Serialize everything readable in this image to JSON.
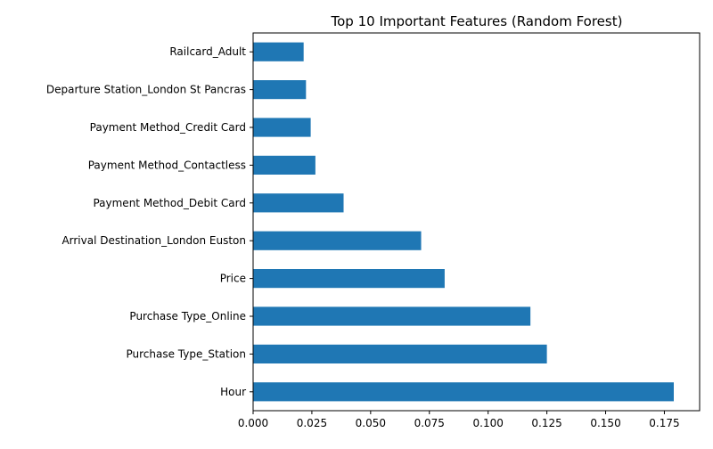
{
  "chart_data": {
    "type": "bar",
    "orientation": "horizontal",
    "title": "Top 10 Important Features (Random Forest)",
    "xlabel": "",
    "ylabel": "",
    "categories": [
      "Hour",
      "Purchase Type_Station",
      "Purchase Type_Online",
      "Price",
      "Arrival Destination_London Euston",
      "Payment Method_Debit Card",
      "Payment Method_Contactless",
      "Payment Method_Credit Card",
      "Departure Station_London St Pancras",
      "Railcard_Adult"
    ],
    "values": [
      0.179,
      0.125,
      0.118,
      0.0815,
      0.0715,
      0.0385,
      0.0265,
      0.0245,
      0.0225,
      0.0215
    ],
    "xlim": [
      0,
      0.19
    ],
    "xticks": [
      0.0,
      0.025,
      0.05,
      0.075,
      0.1,
      0.125,
      0.15,
      0.175
    ],
    "xtick_labels": [
      "0.000",
      "0.025",
      "0.050",
      "0.075",
      "0.100",
      "0.125",
      "0.150",
      "0.175"
    ],
    "bar_color": "#1f77b4",
    "grid": false,
    "legend": false
  }
}
